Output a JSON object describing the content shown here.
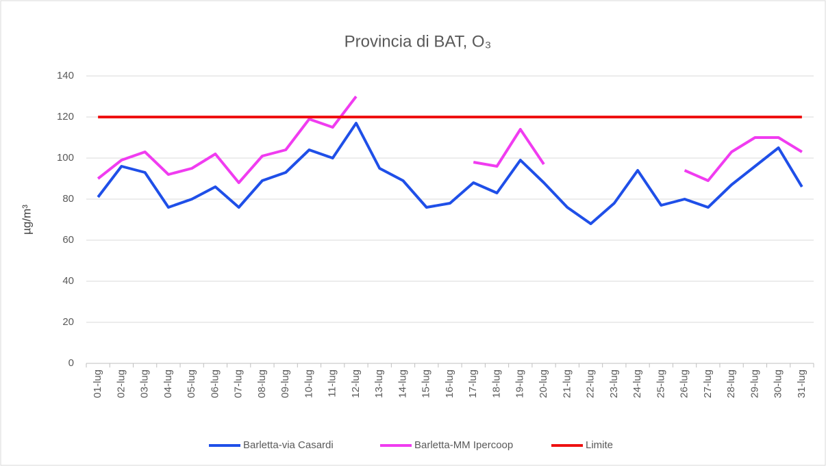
{
  "chart_data": {
    "type": "line",
    "title": "Provincia di BAT, O₃",
    "ylabel": "µg/m³",
    "categories": [
      "01-lug",
      "02-lug",
      "03-lug",
      "04-lug",
      "05-lug",
      "06-lug",
      "07-lug",
      "08-lug",
      "09-lug",
      "10-lug",
      "11-lug",
      "12-lug",
      "13-lug",
      "14-lug",
      "15-lug",
      "16-lug",
      "17-lug",
      "18-lug",
      "19-lug",
      "20-lug",
      "21-lug",
      "22-lug",
      "23-lug",
      "24-lug",
      "25-lug",
      "26-lug",
      "27-lug",
      "28-lug",
      "29-lug",
      "30-lug",
      "31-lug"
    ],
    "series": [
      {
        "name": "Barletta-via Casardi",
        "color": "#1f4fe8",
        "values": [
          81,
          96,
          93,
          76,
          80,
          86,
          76,
          89,
          93,
          104,
          100,
          117,
          95,
          89,
          76,
          78,
          88,
          83,
          99,
          88,
          76,
          68,
          78,
          94,
          77,
          80,
          76,
          87,
          96,
          105,
          86
        ]
      },
      {
        "name": "Barletta-MM Ipercoop",
        "color": "#f03cf0",
        "values": [
          90,
          99,
          103,
          92,
          95,
          102,
          88,
          101,
          104,
          119,
          115,
          130,
          null,
          null,
          null,
          null,
          98,
          96,
          114,
          97,
          null,
          null,
          null,
          null,
          null,
          94,
          89,
          103,
          110,
          110,
          103
        ]
      },
      {
        "name": "Limite",
        "color": "#ee1111",
        "values": [
          120,
          120,
          120,
          120,
          120,
          120,
          120,
          120,
          120,
          120,
          120,
          120,
          120,
          120,
          120,
          120,
          120,
          120,
          120,
          120,
          120,
          120,
          120,
          120,
          120,
          120,
          120,
          120,
          120,
          120,
          120
        ]
      }
    ],
    "ylim": [
      0,
      140
    ],
    "yticks": [
      0,
      20,
      40,
      60,
      80,
      100,
      120,
      140
    ],
    "grid": true,
    "legend": "bottom"
  }
}
